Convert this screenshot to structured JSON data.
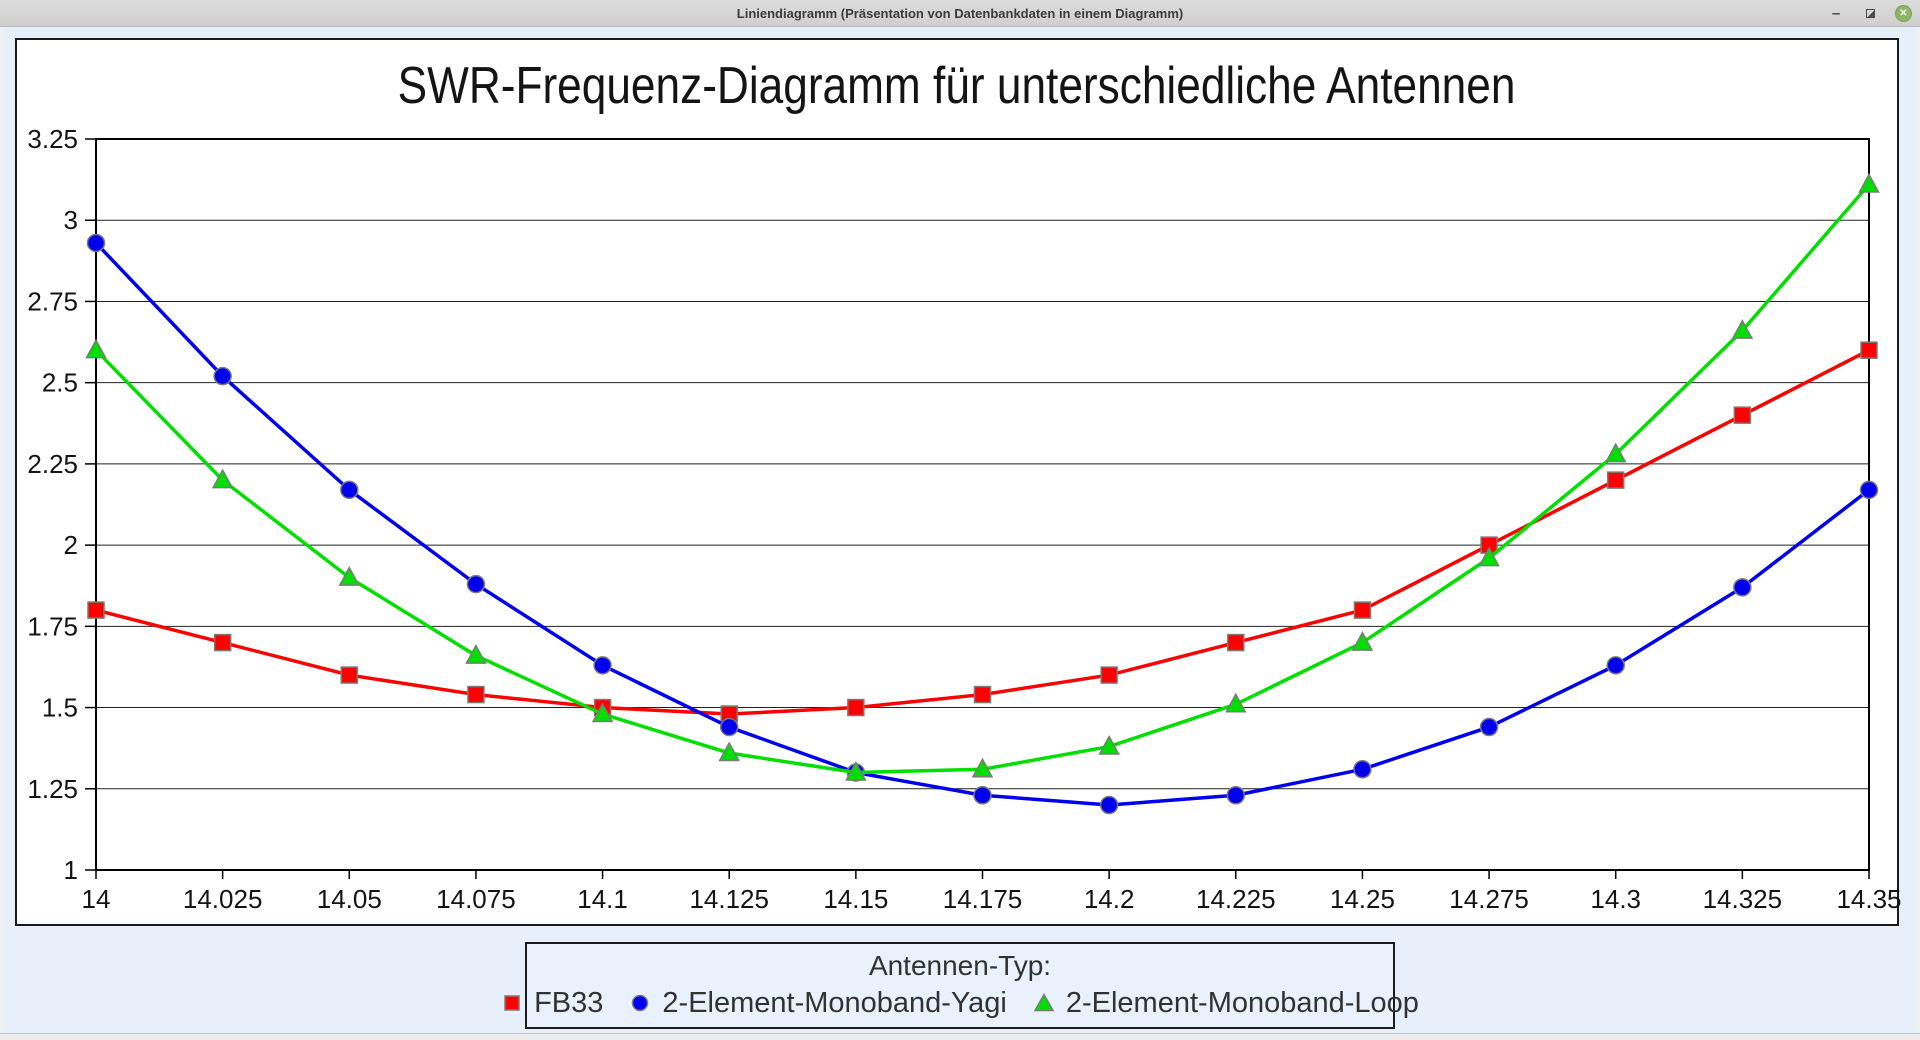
{
  "window": {
    "title": "Liniendiagramm (Präsentation von Datenbankdaten in einem Diagramm)",
    "controls": {
      "minimize": "–",
      "close": "✕"
    }
  },
  "chart_data": {
    "type": "line",
    "title": "SWR-Frequenz-Diagramm für unterschiedliche Antennen",
    "xlabel": "",
    "ylabel": "",
    "xlim": [
      14,
      14.35
    ],
    "ylim": [
      1,
      3.25
    ],
    "grid": "horizontal",
    "legend_position": "bottom",
    "legend_title": "Antennen-Typ:",
    "x": [
      14,
      14.025,
      14.05,
      14.075,
      14.1,
      14.125,
      14.15,
      14.175,
      14.2,
      14.225,
      14.25,
      14.275,
      14.3,
      14.325,
      14.35
    ],
    "x_tick_labels": [
      "14",
      "14.025",
      "14.05",
      "14.075",
      "14.1",
      "14.125",
      "14.15",
      "14.175",
      "14.2",
      "14.225",
      "14.25",
      "14.275",
      "14.3",
      "14.325",
      "14.35"
    ],
    "y_ticks": [
      1,
      1.25,
      1.5,
      1.75,
      2,
      2.25,
      2.5,
      2.75,
      3,
      3.25
    ],
    "y_tick_labels": [
      "1",
      "1.25",
      "1.5",
      "1.75",
      "2",
      "2.25",
      "2.5",
      "2.75",
      "3",
      "3.25"
    ],
    "series": [
      {
        "name": "FB33",
        "marker": "square",
        "color": "#fe0000",
        "values": [
          1.8,
          1.7,
          1.6,
          1.54,
          1.5,
          1.48,
          1.5,
          1.54,
          1.6,
          1.7,
          1.8,
          2.0,
          2.2,
          2.4,
          2.6
        ]
      },
      {
        "name": "2-Element-Monoband-Yagi",
        "marker": "circle",
        "color": "#0000ef",
        "values": [
          2.93,
          2.52,
          2.17,
          1.88,
          1.63,
          1.44,
          1.3,
          1.23,
          1.2,
          1.23,
          1.31,
          1.44,
          1.63,
          1.87,
          2.17
        ]
      },
      {
        "name": "2-Element-Monoband-Loop",
        "marker": "triangle",
        "color": "#00df00",
        "values": [
          2.6,
          2.2,
          1.9,
          1.66,
          1.48,
          1.36,
          1.3,
          1.31,
          1.38,
          1.51,
          1.7,
          1.96,
          2.28,
          2.66,
          3.11
        ]
      }
    ],
    "marker_outline_color": "#7a7a7a",
    "axis_color": "#000000",
    "gridline_color": "#222222",
    "tick_label_color": "#141414"
  }
}
